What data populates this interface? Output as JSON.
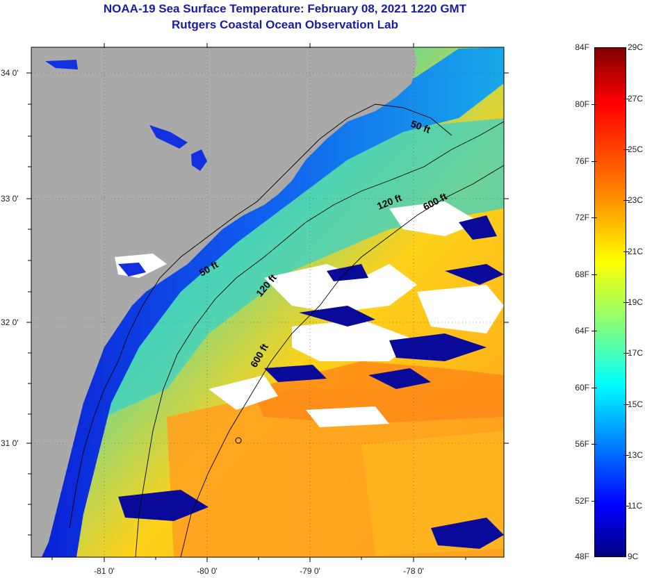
{
  "header": {
    "title": "NOAA-19 Sea Surface Temperature:  February 08, 2021 1220 GMT",
    "subtitle": "Rutgers Coastal Ocean Observation Lab"
  },
  "map": {
    "lat_labels": [
      "34 0'",
      "33 0'",
      "32 0'",
      "31 0'"
    ],
    "lon_labels": [
      "-81 0'",
      "-80 0'",
      "-79 0'",
      "-78 0'"
    ],
    "contours": [
      "50 ft",
      "50 ft",
      "120 ft",
      "120 ft",
      "600 ft",
      "600 ft"
    ],
    "colors": {
      "land": "#a9a9a9",
      "cloud": "#ffffff"
    }
  },
  "colorbar": {
    "fahrenheit": [
      "84F",
      "80F",
      "76F",
      "72F",
      "68F",
      "64F",
      "60F",
      "56F",
      "52F",
      "48F"
    ],
    "celsius": [
      "29C",
      "27C",
      "25C",
      "23C",
      "21C",
      "19C",
      "17C",
      "15C",
      "13C",
      "11C",
      "9C"
    ],
    "colors": [
      "#800000",
      "#ff0000",
      "#ff8000",
      "#ffff00",
      "#80ff80",
      "#00ffff",
      "#0080ff",
      "#0000ff",
      "#000080"
    ]
  }
}
